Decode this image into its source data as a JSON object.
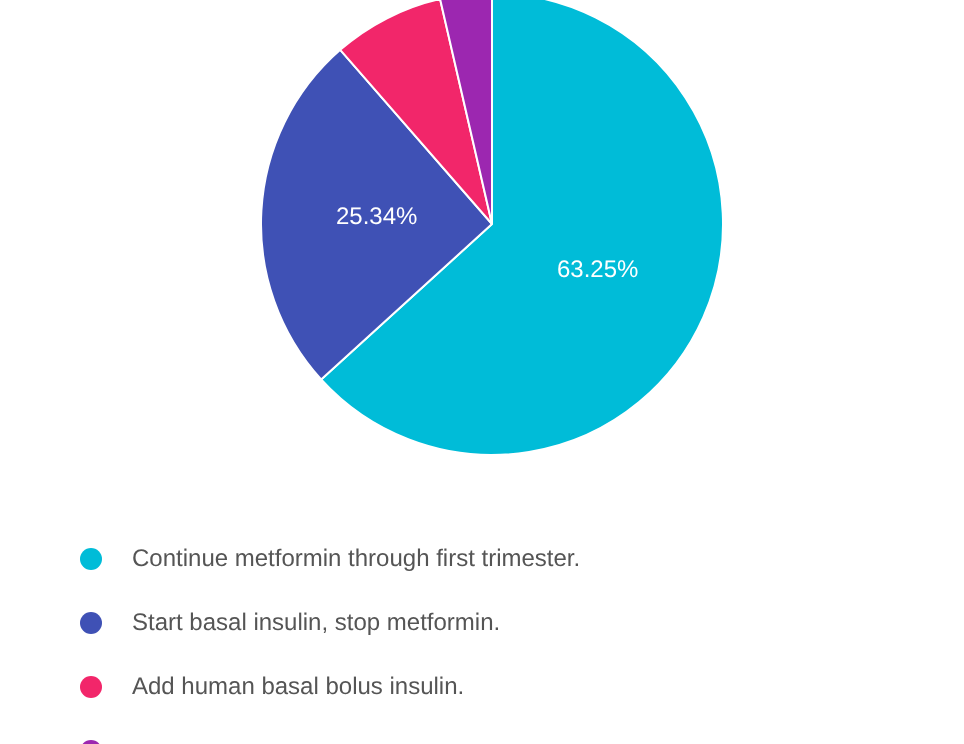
{
  "chart_data": {
    "type": "pie",
    "categories": [
      "Continue metformin through first trimester.",
      "Start basal insulin, stop metformin.",
      "Add human basal bolus insulin.",
      null
    ],
    "values": [
      63.25,
      25.34,
      7.8,
      3.61
    ],
    "colors": [
      "#00bcd8",
      "#3f51b5",
      "#f2266a",
      "#9c27b0"
    ],
    "value_labels": [
      "63.25%",
      "25.34%",
      null,
      null
    ],
    "legend": "bottom"
  }
}
